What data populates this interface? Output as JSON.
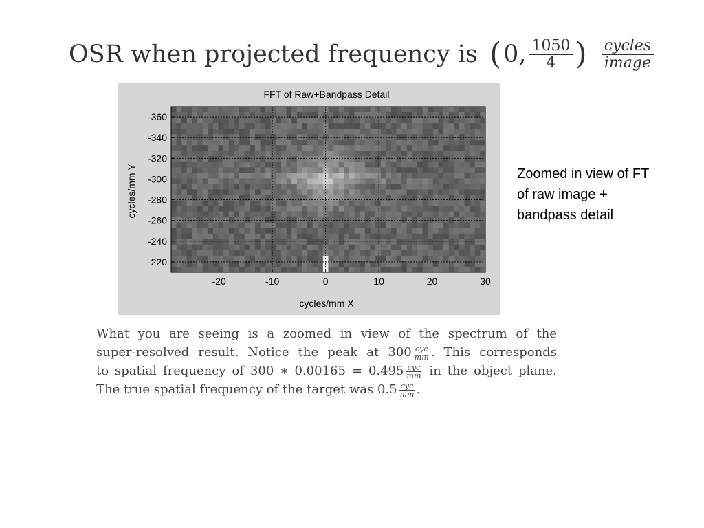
{
  "slide": {
    "title_prefix": "OSR when projected frequency is",
    "title_paren_open": "(",
    "title_first": "0,",
    "title_frac_num": "1050",
    "title_frac_den": "4",
    "title_paren_close": ")",
    "title_unit_num": "cycles",
    "title_unit_den": "image"
  },
  "side_note": {
    "lines": [
      "Zoomed in view of FT",
      "of raw image +",
      "bandpass detail"
    ]
  },
  "paragraph": {
    "line1": "What you are seeing is a zoomed in view of the spectrum of the",
    "line2_a": "super-resolved result.  Notice the peak at 300",
    "line2_b": ".  This corresponds",
    "line3_a": "to spatial frequency of 300 ∗ 0.00165 = 0.495",
    "line3_b": " in the object plane.",
    "line4_a": "The true spatial frequency of the target was 0.5",
    "line4_b": ".",
    "unit_num": "cyc",
    "unit_den": "mm"
  },
  "chart_data": {
    "type": "heatmap",
    "title": "FFT of Raw+Bandpass Detail",
    "xlabel": "cycles/mm X",
    "ylabel": "cycles/mm Y",
    "xlim": [
      -29,
      30
    ],
    "ylim": [
      -210,
      -370
    ],
    "x_ticks": [
      -20,
      -10,
      0,
      10,
      20,
      30
    ],
    "y_ticks": [
      -360,
      -340,
      -320,
      -300,
      -280,
      -260,
      -240,
      -220
    ],
    "grid": true,
    "colormap": "gray",
    "description_of_features": {
      "peak": {
        "x": 0,
        "y": -300
      },
      "dc_streak_x": 0
    }
  },
  "colors": {
    "figure_bg": "#d6d6d6",
    "grid": "#000000",
    "text": "#000000"
  }
}
